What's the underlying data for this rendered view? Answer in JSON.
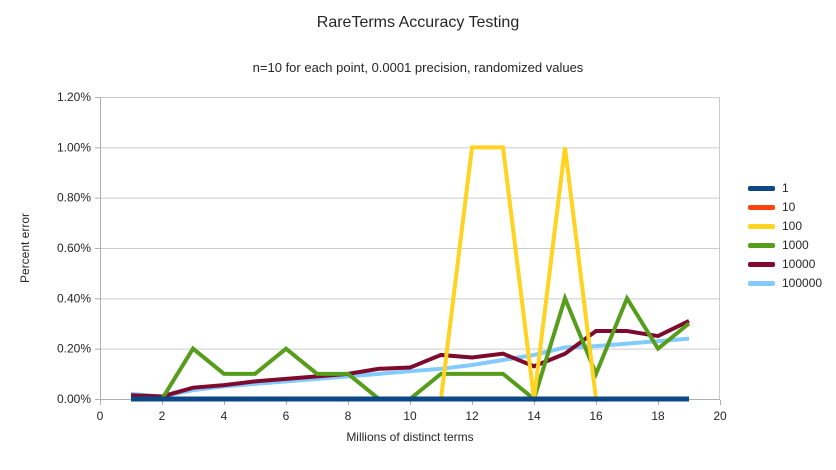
{
  "chart_data": {
    "type": "line",
    "title": "RareTerms Accuracy Testing",
    "subtitle": "n=10 for each point, 0.0001 precision, randomized values",
    "xlabel": "Millions of distinct terms",
    "ylabel": "Percent error",
    "legend_position": "right",
    "grid": "horizontal-only",
    "xlim": [
      0,
      20
    ],
    "ylim_percent": [
      0,
      1.2
    ],
    "x_ticks": [
      0,
      2,
      4,
      6,
      8,
      10,
      12,
      14,
      16,
      18,
      20
    ],
    "x_tick_labels": [
      "0",
      "2",
      "4",
      "6",
      "8",
      "10",
      "12",
      "14",
      "16",
      "18",
      "20"
    ],
    "y_ticks": [
      0,
      0.2,
      0.4,
      0.6,
      0.8,
      1.0,
      1.2
    ],
    "y_tick_labels": [
      "0.00%",
      "0.20%",
      "0.40%",
      "0.60%",
      "0.80%",
      "1.00%",
      "1.20%"
    ],
    "grid_color": "#CCCCCC",
    "axis_color": "#B0B0B0",
    "x": [
      1,
      2,
      3,
      4,
      5,
      6,
      7,
      8,
      9,
      10,
      11,
      12,
      13,
      14,
      15,
      16,
      17,
      18,
      19
    ],
    "series": [
      {
        "name": "1",
        "color": "#0D4886",
        "values": [
          0,
          0,
          0,
          0,
          0,
          0,
          0,
          0,
          0,
          0,
          0,
          0,
          0,
          0,
          0,
          0,
          0,
          0,
          0
        ]
      },
      {
        "name": "10",
        "color": "#FF420E",
        "values": [
          0,
          0,
          0,
          0,
          0,
          0,
          0,
          0,
          0,
          0,
          0,
          0,
          0,
          0,
          0,
          0,
          0,
          0,
          0
        ]
      },
      {
        "name": "100",
        "color": "#FFD320",
        "values": [
          0,
          0,
          0,
          0,
          0,
          0,
          0,
          0,
          0,
          0,
          0,
          1.0,
          1.0,
          0,
          1.0,
          0,
          0,
          0,
          0
        ]
      },
      {
        "name": "1000",
        "color": "#579D1C",
        "values": [
          0,
          0,
          0.2,
          0.1,
          0.1,
          0.2,
          0.1,
          0.1,
          0,
          0,
          0.1,
          0.1,
          0.1,
          0,
          0.4,
          0.1,
          0.4,
          0.2,
          0.3
        ]
      },
      {
        "name": "10000",
        "color": "#7E0B2D",
        "values": [
          0.015,
          0.01,
          0.045,
          0.055,
          0.07,
          0.08,
          0.09,
          0.1,
          0.12,
          0.125,
          0.175,
          0.165,
          0.18,
          0.13,
          0.18,
          0.27,
          0.27,
          0.25,
          0.31
        ]
      },
      {
        "name": "100000",
        "color": "#83CAFF",
        "values": [
          0.02,
          0.01,
          0.035,
          0.05,
          0.06,
          0.07,
          0.08,
          0.09,
          0.1,
          0.11,
          0.12,
          0.135,
          0.155,
          0.175,
          0.205,
          0.21,
          0.22,
          0.23,
          0.24
        ]
      }
    ]
  }
}
